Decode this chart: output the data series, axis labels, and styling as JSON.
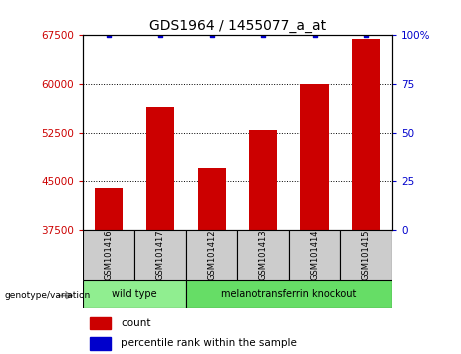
{
  "title": "GDS1964 / 1455077_a_at",
  "samples": [
    "GSM101416",
    "GSM101417",
    "GSM101412",
    "GSM101413",
    "GSM101414",
    "GSM101415"
  ],
  "counts": [
    44000,
    56500,
    47000,
    53000,
    60000,
    67000
  ],
  "percentile_ranks": [
    100,
    100,
    100,
    100,
    100,
    100
  ],
  "y_min": 37500,
  "y_max": 67500,
  "y_ticks": [
    37500,
    45000,
    52500,
    60000,
    67500
  ],
  "y2_ticks": [
    0,
    25,
    50,
    75,
    100
  ],
  "bar_color": "#cc0000",
  "percentile_color": "#0000cc",
  "wild_type_samples": [
    "GSM101416",
    "GSM101417"
  ],
  "knockout_samples": [
    "GSM101412",
    "GSM101413",
    "GSM101414",
    "GSM101415"
  ],
  "wild_type_label": "wild type",
  "knockout_label": "melanotransferrin knockout",
  "genotype_label": "genotype/variation",
  "legend_count_label": "count",
  "legend_percentile_label": "percentile rank within the sample",
  "wild_type_color": "#90ee90",
  "knockout_color": "#66dd66",
  "sample_box_color": "#cccccc",
  "title_fontsize": 10,
  "tick_fontsize": 7.5,
  "label_fontsize": 7,
  "legend_fontsize": 7.5
}
